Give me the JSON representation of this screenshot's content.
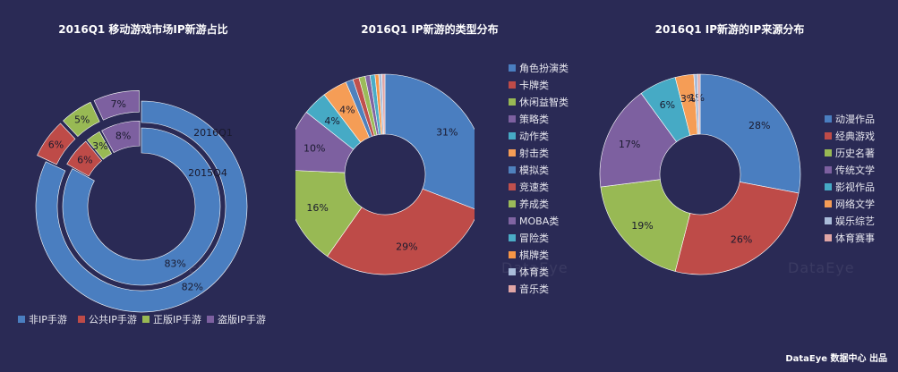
{
  "chart_data": [
    {
      "type": "pie",
      "title": "2016Q1 移动游戏市场IP新游占比",
      "categories": [
        "非IP手游",
        "公共IP手游",
        "正版IP手游",
        "盗版IP手游"
      ],
      "colors": [
        "#4a7ec0",
        "#be4b48",
        "#98b954",
        "#7d60a0"
      ],
      "series": [
        {
          "name": "2016Q1",
          "values": [
            82,
            6,
            5,
            7
          ]
        },
        {
          "name": "2015Q4",
          "values": [
            83,
            6,
            3,
            8
          ]
        }
      ],
      "labels_outer": [
        "82%",
        "6%",
        "5%",
        "7%"
      ],
      "labels_inner": [
        "83%",
        "6%",
        "3%",
        "8%"
      ],
      "legend": "bottom"
    },
    {
      "type": "pie",
      "title": "2016Q1 IP新游的类型分布",
      "categories": [
        "角色扮演类",
        "卡牌类",
        "休闲益智类",
        "策略类",
        "动作类",
        "射击类",
        "模拟类",
        "竞速类",
        "养成类",
        "MOBA类",
        "冒险类",
        "棋牌类",
        "体育类",
        "音乐类"
      ],
      "values": [
        31,
        29,
        16,
        10,
        4,
        4,
        1.2,
        1,
        1,
        0.8,
        0.8,
        0.6,
        0.5,
        0.5
      ],
      "colors": [
        "#4a7ec0",
        "#be4b48",
        "#98b954",
        "#7d60a0",
        "#46aac5",
        "#f59d56",
        "#4f81bd",
        "#c0504d",
        "#9bbb59",
        "#8064a2",
        "#4bacc6",
        "#f79646",
        "#a9bcd9",
        "#e0a5a5"
      ],
      "labels": [
        "31%",
        "29%",
        "16%",
        "10%",
        "4%",
        "4%"
      ],
      "legend": "right"
    },
    {
      "type": "pie",
      "title": "2016Q1 IP新游的IP来源分布",
      "categories": [
        "动漫作品",
        "经典游戏",
        "历史名著",
        "传统文学",
        "影视作品",
        "网络文学",
        "娱乐综艺",
        "体育赛事"
      ],
      "values": [
        28,
        26,
        19,
        17,
        6,
        3,
        0.6,
        0.4
      ],
      "colors": [
        "#4a7ec0",
        "#be4b48",
        "#98b954",
        "#7d60a0",
        "#46aac5",
        "#f59d56",
        "#a9bcd9",
        "#e0a5a5"
      ],
      "labels": [
        "28%",
        "26%",
        "19%",
        "17%",
        "6%",
        "3%",
        "1%"
      ],
      "legend": "right"
    }
  ],
  "watermark": "DataEye",
  "credit": "DataEye 数据中心 出品"
}
